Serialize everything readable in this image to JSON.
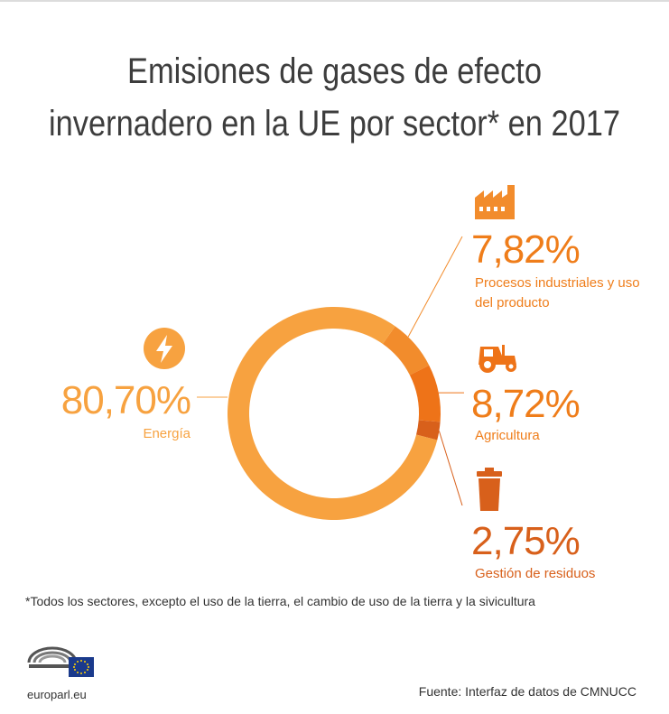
{
  "title_lines": [
    "Emisiones de gases de efecto",
    "invernadero en la UE por sector* en 2017"
  ],
  "footnote": "*Todos los sectores, excepto el uso de la tierra, el cambio de uso de la tierra y la sivicultura",
  "source": "Fuente: Interfaz de datos de CMNUCC",
  "brand": "europarl.eu",
  "colors": {
    "energia": "#f7a240",
    "procesos": "#f28c2c",
    "agricultura": "#ee7318",
    "residuos": "#d8601b"
  },
  "chart_data": {
    "type": "pie",
    "title": "Emisiones de gases de efecto invernadero en la UE por sector* en 2017",
    "slices": [
      {
        "name": "Procesos industriales y uso del producto",
        "value": 7.82,
        "label": "7,82%",
        "icon": "factory-icon"
      },
      {
        "name": "Agricultura",
        "value": 8.72,
        "label": "8,72%",
        "icon": "tractor-icon"
      },
      {
        "name": "Gestión de residuos",
        "value": 2.75,
        "label": "2,75%",
        "icon": "trash-can-icon"
      },
      {
        "name": "Energía",
        "value": 80.7,
        "label": "80,70%",
        "icon": "lightning-icon"
      }
    ],
    "start_angle_deg": 35,
    "donut": true
  }
}
